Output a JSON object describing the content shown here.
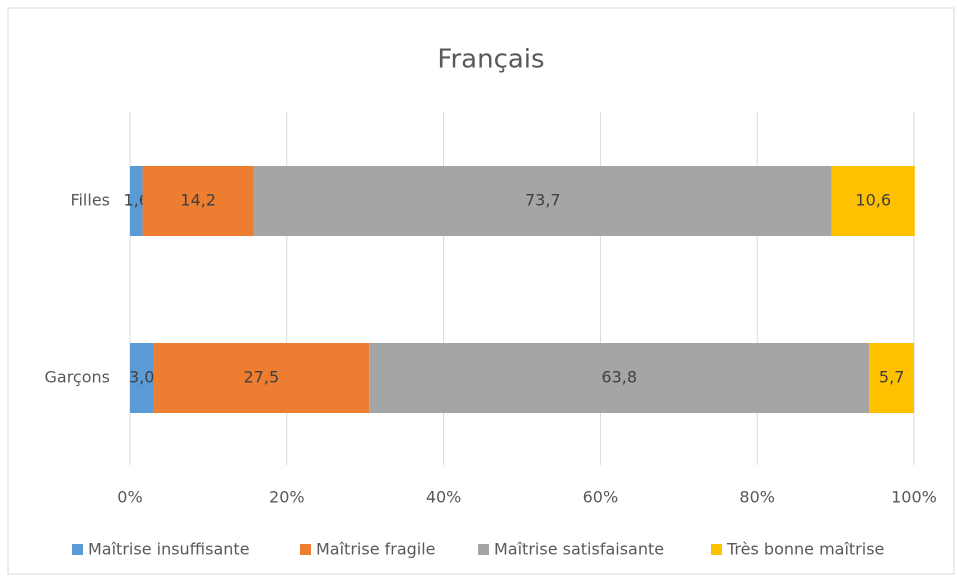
{
  "chart_data": {
    "type": "stacked_bar_horizontal",
    "title": "Français",
    "categories": [
      "Filles",
      "Garçons"
    ],
    "series": [
      {
        "name": "Maîtrise insuffisante",
        "color": "#5b9bd5",
        "values": [
          1.6,
          3.0
        ],
        "value_labels": [
          "1,6",
          "3,0"
        ]
      },
      {
        "name": "Maîtrise fragile",
        "color": "#ed7d31",
        "values": [
          14.2,
          27.5
        ],
        "value_labels": [
          "14,2",
          "27,5"
        ]
      },
      {
        "name": "Maîtrise satisfaisante",
        "color": "#a5a5a5",
        "values": [
          73.7,
          63.8
        ],
        "value_labels": [
          "73,7",
          "63,8"
        ]
      },
      {
        "name": "Très bonne maîtrise",
        "color": "#ffc000",
        "values": [
          10.6,
          5.7
        ],
        "value_labels": [
          "10,6",
          "5,7"
        ]
      }
    ],
    "xlim": [
      0,
      100
    ],
    "xticks": [
      {
        "value": 0,
        "label": "0%"
      },
      {
        "value": 20,
        "label": "20%"
      },
      {
        "value": 40,
        "label": "40%"
      },
      {
        "value": 60,
        "label": "60%"
      },
      {
        "value": 80,
        "label": "80%"
      },
      {
        "value": 100,
        "label": "100%"
      }
    ],
    "grid": true,
    "legend": "bottom"
  }
}
